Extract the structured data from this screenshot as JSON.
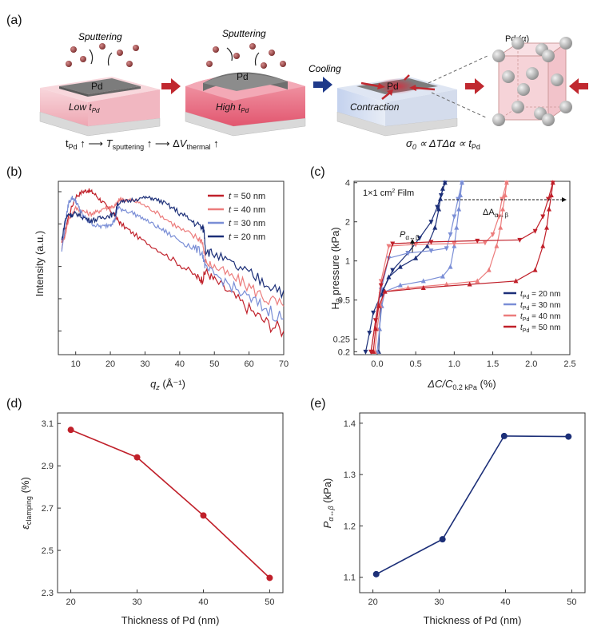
{
  "panel_a": {
    "label": "(a)",
    "sputtering_1": "Sputtering",
    "sputtering_2": "Sputtering",
    "pd_label": "Pd",
    "low_t_prefix": "Low t",
    "low_t_sub": "Pd",
    "high_t_prefix": "High t",
    "high_t_sub": "Pd",
    "cooling": "Cooling",
    "contraction": "Contraction",
    "pd_alpha": "Pd (α)",
    "equation_left_1": "t",
    "equation_left_1_sub": "Pd",
    "equation_left_2": " ↑ ⟶ ",
    "equation_left_3": "T",
    "equation_left_3_sub": "sputtering",
    "equation_left_4": " ↑ ⟶ Δ",
    "equation_left_5": "V",
    "equation_left_5_sub": "thermal",
    "equation_left_6": " ↑",
    "equation_right_1": "σ",
    "equation_right_1_sub": "0",
    "equation_right_2": " ∝ ΔTΔα ∝ t",
    "equation_right_2_sub": "Pd",
    "colors": {
      "pink_low": "#f4c4cc",
      "pink_high": "#e8637a",
      "blue_substrate": "#c9d6ee",
      "arrow_red": "#c0282f",
      "arrow_blue": "#1f3a8a",
      "pd_gray": "#8a8a8a"
    }
  },
  "chart_data": [
    {
      "id": "b",
      "label": "(b)",
      "type": "line",
      "xlabel": "q",
      "xlabel_sub": "z",
      "xlabel_unit": " (Å⁻¹)",
      "ylabel": "Intensity (a.u.)",
      "xlim": [
        5,
        70
      ],
      "xticks": [
        "10",
        "20",
        "30",
        "40",
        "50",
        "60",
        "70"
      ],
      "yscale": "log",
      "legend_position": "top-right",
      "series": [
        {
          "name": "t = 50 nm",
          "legend_var": "t",
          "legend_rest": " = 50 nm",
          "color": "#c0202a",
          "x": [
            6,
            8,
            10,
            12,
            13.5,
            15,
            17,
            19,
            21,
            21.5,
            23,
            26,
            30,
            35,
            40,
            45,
            46.5,
            47.5,
            50,
            55,
            60,
            65,
            70
          ],
          "y": [
            0.32,
            0.6,
            0.9,
            1.0,
            1.03,
            0.98,
            0.85,
            0.72,
            0.62,
            0.58,
            0.5,
            0.42,
            0.34,
            0.27,
            0.21,
            0.16,
            0.15,
            0.18,
            0.15,
            0.11,
            0.08,
            0.06,
            0.05
          ]
        },
        {
          "name": "t = 40 nm",
          "legend_var": "t",
          "legend_rest": " = 40 nm",
          "color": "#ec7c7c",
          "x": [
            6,
            8,
            10,
            12,
            14,
            16,
            18,
            20,
            21.5,
            22.5,
            23,
            24,
            26,
            28,
            30,
            33,
            37,
            41,
            45,
            46.5,
            47.5,
            50,
            55,
            60,
            65,
            70
          ],
          "y": [
            0.3,
            0.55,
            0.7,
            0.66,
            0.62,
            0.64,
            0.7,
            0.72,
            0.74,
            0.83,
            0.85,
            0.84,
            0.83,
            0.8,
            0.74,
            0.65,
            0.53,
            0.43,
            0.37,
            0.35,
            0.22,
            0.2,
            0.16,
            0.13,
            0.1,
            0.085
          ]
        },
        {
          "name": "t = 30 nm",
          "legend_var": "t",
          "legend_rest": " = 30 nm",
          "color": "#7a8ed6",
          "x": [
            6,
            7,
            8,
            9,
            10,
            11,
            12,
            14,
            16,
            18,
            20,
            21,
            21.5,
            22,
            24,
            27,
            30,
            33,
            36,
            40,
            44,
            46.5,
            47.5,
            50,
            55,
            60,
            65,
            70
          ],
          "y": [
            0.28,
            0.5,
            0.8,
            0.88,
            0.82,
            0.7,
            0.6,
            0.52,
            0.48,
            0.47,
            0.5,
            0.53,
            0.56,
            0.7,
            0.68,
            0.62,
            0.55,
            0.48,
            0.42,
            0.35,
            0.3,
            0.27,
            0.19,
            0.17,
            0.13,
            0.1,
            0.08,
            0.065
          ]
        },
        {
          "name": "t = 20 nm",
          "legend_var": "t",
          "legend_rest": " = 20 nm",
          "color": "#1c2f78",
          "x": [
            6,
            7,
            8,
            9,
            10,
            12,
            14,
            16,
            18,
            20,
            21.5,
            22,
            24,
            27,
            30,
            32,
            35,
            38,
            41,
            44,
            46.5,
            47,
            47.5,
            50,
            55,
            60,
            65,
            70
          ],
          "y": [
            0.35,
            0.55,
            0.62,
            0.6,
            0.63,
            0.58,
            0.54,
            0.55,
            0.58,
            0.6,
            0.62,
            0.78,
            0.8,
            0.85,
            0.88,
            0.87,
            0.8,
            0.7,
            0.6,
            0.52,
            0.46,
            0.44,
            0.28,
            0.26,
            0.21,
            0.17,
            0.14,
            0.12
          ]
        }
      ]
    },
    {
      "id": "c",
      "label": "(c)",
      "type": "line",
      "xlabel_1": "ΔC/C",
      "xlabel_sub": "0.2 kPa",
      "xlabel_2": " (%)",
      "ylabel_1": "H",
      "ylabel_sub": "2",
      "ylabel_2": " pressure (kPa)",
      "xlim": [
        -0.3,
        2.5
      ],
      "ylim": [
        0.2,
        4
      ],
      "yscale": "log",
      "xticks": [
        "0.0",
        "0.5",
        "1.0",
        "1.5",
        "2.0",
        "2.5"
      ],
      "yticks": [
        "0.2",
        "0.25",
        "0.5",
        "1",
        "2",
        "4"
      ],
      "annotation_film": "1×1 cm",
      "annotation_film_sup": "2",
      "annotation_film_rest": " Film",
      "annotation_p_1": "P",
      "annotation_p_sub": "α↔β",
      "annotation_dA_1": "ΔA",
      "annotation_dA_sub": "α↔β",
      "legend_position": "bottom-right",
      "series": [
        {
          "name": "tPd = 20 nm",
          "legend_var": "t",
          "legend_sub": "Pd",
          "legend_rest": " = 20 nm",
          "color": "#1c2f78",
          "absorption": {
            "x": [
              0.02,
              0.03,
              0.05,
              0.08,
              0.15,
              0.3,
              0.5,
              0.65,
              0.75,
              0.8,
              0.82,
              0.85,
              0.88
            ],
            "y": [
              0.2,
              0.3,
              0.45,
              0.6,
              0.75,
              0.9,
              1.05,
              1.3,
              1.8,
              2.5,
              3.0,
              3.6,
              4.0
            ]
          },
          "desorption": {
            "x": [
              0.88,
              0.83,
              0.78,
              0.7,
              0.55,
              0.4,
              0.2,
              0.05,
              -0.05,
              -0.1,
              -0.15
            ],
            "y": [
              4.0,
              3.2,
              2.6,
              2.0,
              1.5,
              1.15,
              0.85,
              0.55,
              0.4,
              0.28,
              0.2
            ]
          }
        },
        {
          "name": "tPd = 30 nm",
          "legend_var": "t",
          "legend_sub": "Pd",
          "legend_rest": " = 30 nm",
          "color": "#7a8ed6",
          "absorption": {
            "x": [
              0.0,
              0.03,
              0.06,
              0.1,
              0.3,
              0.6,
              0.85,
              0.95,
              1.0,
              1.03,
              1.06,
              1.08,
              1.1
            ],
            "y": [
              0.2,
              0.3,
              0.45,
              0.58,
              0.65,
              0.7,
              0.76,
              0.9,
              1.3,
              1.8,
              2.5,
              3.2,
              4.0
            ]
          },
          "desorption": {
            "x": [
              1.1,
              1.05,
              1.0,
              0.95,
              0.9,
              0.7,
              0.4,
              0.15,
              0.05,
              -0.02,
              -0.08
            ],
            "y": [
              4.0,
              3.0,
              2.2,
              1.6,
              1.25,
              1.2,
              1.15,
              1.05,
              0.6,
              0.35,
              0.2
            ]
          }
        },
        {
          "name": "tPd = 40 nm",
          "legend_var": "t",
          "legend_sub": "Pd",
          "legend_rest": " = 40 nm",
          "color": "#ec7c7c",
          "absorption": {
            "x": [
              -0.03,
              0.0,
              0.04,
              0.1,
              0.4,
              0.9,
              1.3,
              1.45,
              1.55,
              1.6,
              1.63,
              1.66,
              1.68
            ],
            "y": [
              0.2,
              0.3,
              0.45,
              0.58,
              0.62,
              0.66,
              0.7,
              0.85,
              1.3,
              1.8,
              2.5,
              3.2,
              4.0
            ]
          },
          "desorption": {
            "x": [
              1.68,
              1.62,
              1.58,
              1.5,
              1.4,
              1.0,
              0.5,
              0.15,
              0.05,
              -0.02,
              -0.08
            ],
            "y": [
              4.0,
              3.0,
              2.2,
              1.6,
              1.38,
              1.36,
              1.34,
              1.3,
              0.7,
              0.35,
              0.2
            ]
          }
        },
        {
          "name": "tPd = 50 nm",
          "legend_var": "t",
          "legend_sub": "Pd",
          "legend_rest": " = 50 nm",
          "color": "#c0202a",
          "absorption": {
            "x": [
              -0.05,
              -0.02,
              0.02,
              0.1,
              0.6,
              1.2,
              1.8,
              2.05,
              2.15,
              2.2,
              2.23,
              2.26,
              2.28
            ],
            "y": [
              0.2,
              0.3,
              0.45,
              0.58,
              0.62,
              0.66,
              0.7,
              0.85,
              1.3,
              1.8,
              2.5,
              3.2,
              4.0
            ]
          },
          "desorption": {
            "x": [
              2.28,
              2.22,
              2.15,
              2.05,
              1.85,
              1.3,
              0.7,
              0.2,
              0.05,
              -0.02,
              -0.08
            ],
            "y": [
              4.0,
              3.0,
              2.2,
              1.7,
              1.45,
              1.43,
              1.4,
              1.36,
              0.65,
              0.35,
              0.2
            ]
          }
        }
      ]
    },
    {
      "id": "d",
      "label": "(d)",
      "type": "line",
      "xlabel": "Thickness of Pd (nm)",
      "ylabel_var": "ε",
      "ylabel_sub": "clamping",
      "ylabel_rest": " (%)",
      "xlim": [
        18,
        52
      ],
      "ylim": [
        2.3,
        3.15
      ],
      "xticks": [
        "20",
        "30",
        "40",
        "50"
      ],
      "yticks": [
        "2.3",
        "2.5",
        "2.7",
        "2.9",
        "3.1"
      ],
      "color": "#c0202a",
      "x": [
        20,
        30,
        40,
        50
      ],
      "y": [
        3.07,
        2.94,
        2.665,
        2.37
      ]
    },
    {
      "id": "e",
      "label": "(e)",
      "type": "line",
      "xlabel": "Thickness of Pd (nm)",
      "ylabel_var": "P",
      "ylabel_sub": "α↔β",
      "ylabel_rest": " (kPa)",
      "xlim": [
        18,
        52
      ],
      "ylim": [
        1.07,
        1.42
      ],
      "xticks": [
        "20",
        "30",
        "40",
        "50"
      ],
      "yticks": [
        "1.1",
        "1.2",
        "1.3",
        "1.4"
      ],
      "color": "#1c2f78",
      "x": [
        20.5,
        30.5,
        39.8,
        49.5
      ],
      "y": [
        1.106,
        1.174,
        1.375,
        1.374
      ]
    }
  ]
}
